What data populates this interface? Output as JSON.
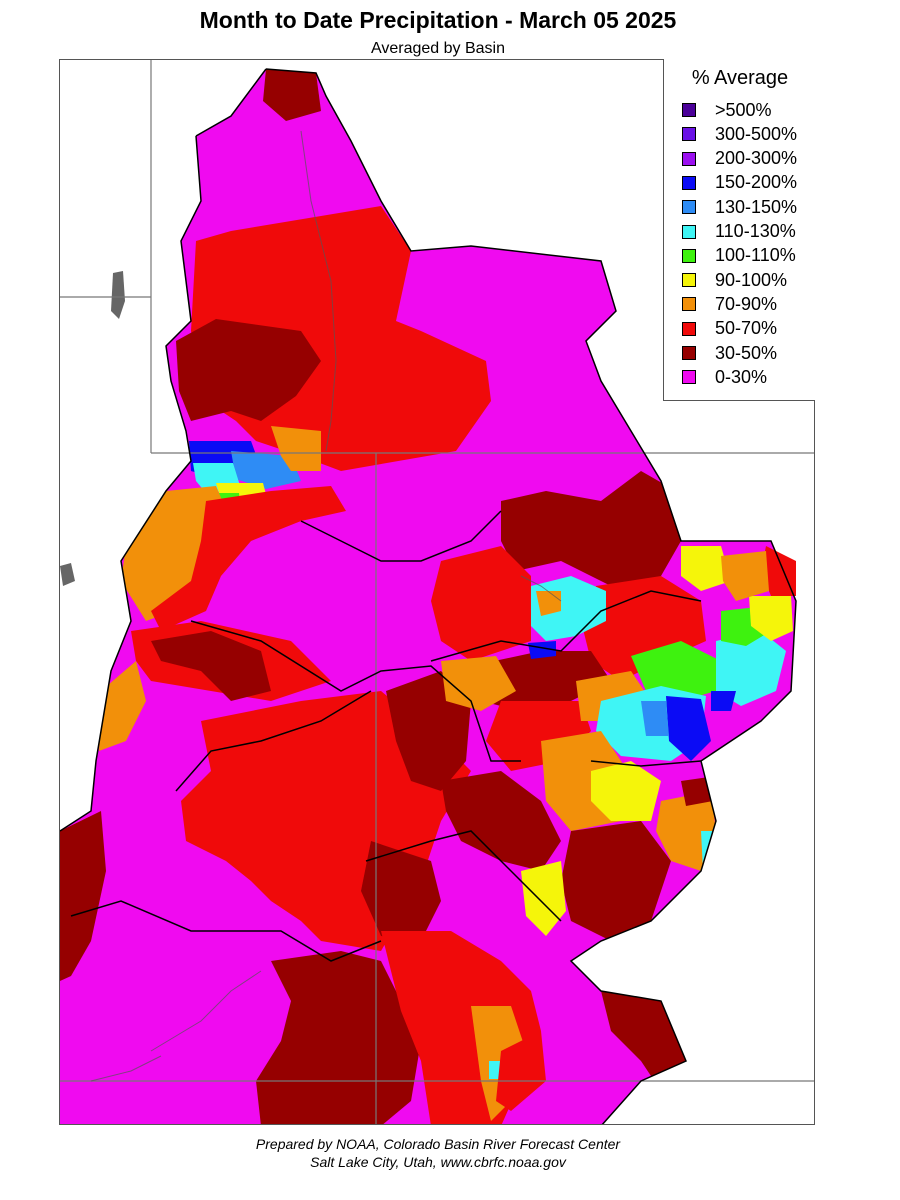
{
  "header": {
    "title": "Month to Date Precipitation - March 05 2025",
    "subtitle": "Averaged by Basin"
  },
  "legend": {
    "title": "% Average",
    "items": [
      {
        "label": ">500%",
        "color": "#4b0099"
      },
      {
        "label": "300-500%",
        "color": "#6a11e6"
      },
      {
        "label": "200-300%",
        "color": "#9b10f0"
      },
      {
        "label": "150-200%",
        "color": "#0b0bf5"
      },
      {
        "label": "130-150%",
        "color": "#2e8cf5"
      },
      {
        "label": "110-130%",
        "color": "#3ff5f5"
      },
      {
        "label": "100-110%",
        "color": "#3ef20f"
      },
      {
        "label": "90-100%",
        "color": "#f5f50a"
      },
      {
        "label": "70-90%",
        "color": "#f2900a"
      },
      {
        "label": "50-70%",
        "color": "#f00a0a"
      },
      {
        "label": "30-50%",
        "color": "#960000"
      },
      {
        "label": "0-30%",
        "color": "#f00af0"
      }
    ]
  },
  "footer": {
    "line1": "Prepared by NOAA, Colorado Basin River Forecast Center",
    "line2": "Salt Lake City, Utah, www.cbrfc.noaa.gov"
  }
}
